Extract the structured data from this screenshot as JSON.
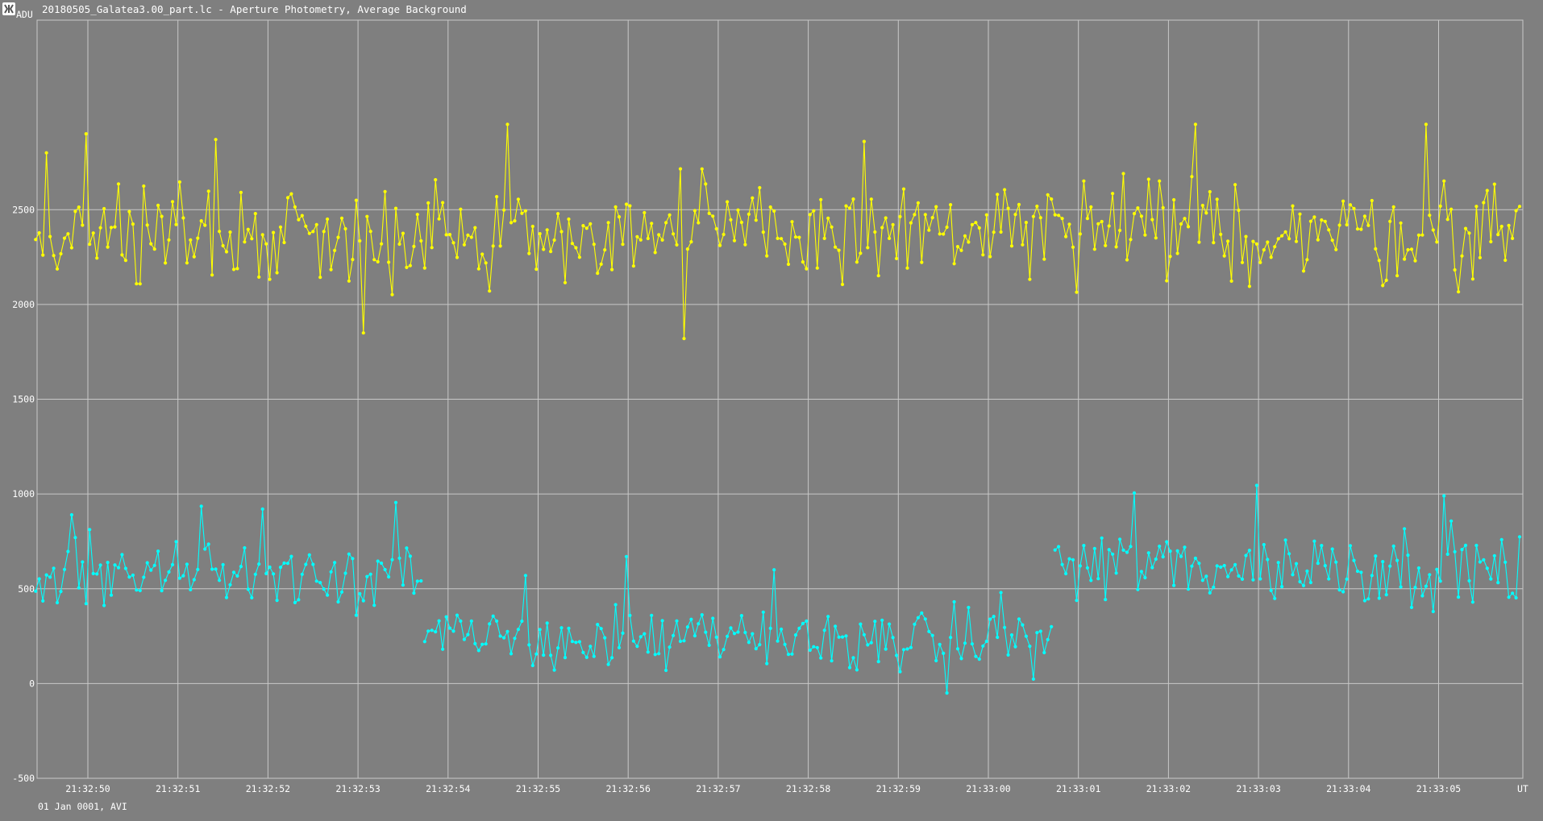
{
  "window": {
    "title": "20180505_Galatea3.00_part.lc - Aperture Photometry, Average Background",
    "icon": "app-logo-icon"
  },
  "footer": {
    "date_label": "01 Jan 0001, AVI"
  },
  "chart_data": {
    "type": "line",
    "xlabel": "UT",
    "ylabel": "ADU",
    "grid": true,
    "ylim": [
      -500,
      3500
    ],
    "y_ticks": [
      -500,
      0,
      500,
      1000,
      1500,
      2000,
      2500
    ],
    "x_tick_labels": [
      "21:32:50",
      "21:32:51",
      "21:32:52",
      "21:32:53",
      "21:32:54",
      "21:32:55",
      "21:32:56",
      "21:32:57",
      "21:32:58",
      "21:32:59",
      "21:33:00",
      "21:33:01",
      "21:33:02",
      "21:33:03",
      "21:33:04",
      "21:33:05"
    ],
    "x_range_seconds_of_first_label": [
      -0.58,
      15.9
    ],
    "points_per_second": 25,
    "background": "#7f7f7f",
    "grid_color": "#c8c8c8",
    "series": [
      {
        "color": "#ffff00",
        "segments": [
          {
            "start_s": -0.58,
            "length": 413,
            "mean": 2380,
            "amp": 190,
            "spikes": [
              [
                3,
                2800
              ],
              [
                14,
                2900
              ],
              [
                50,
                2870
              ],
              [
                91,
                1850
              ],
              [
                131,
                2950
              ],
              [
                180,
                1820
              ],
              [
                230,
                2860
              ],
              [
                322,
                2950
              ],
              [
                386,
                2950
              ]
            ]
          }
        ]
      },
      {
        "color": "#00ffff",
        "segments": [
          {
            "start_s": -0.58,
            "length": 108,
            "mean": 590,
            "amp": 130,
            "spikes": [
              [
                10,
                890
              ],
              [
                46,
                935
              ],
              [
                63,
                920
              ],
              [
                100,
                955
              ]
            ]
          },
          {
            "start_s": 3.74,
            "length": 175,
            "mean": 230,
            "amp": 110,
            "spikes": [
              [
                28,
                570
              ],
              [
                56,
                670
              ],
              [
                97,
                600
              ],
              [
                145,
                -50
              ],
              [
                160,
                480
              ]
            ]
          },
          {
            "start_s": 10.74,
            "length": 130,
            "mean": 620,
            "amp": 140,
            "spikes": [
              [
                22,
                1005
              ],
              [
                56,
                1045
              ],
              [
                108,
                990
              ],
              [
                125,
                640
              ]
            ]
          }
        ]
      }
    ]
  }
}
